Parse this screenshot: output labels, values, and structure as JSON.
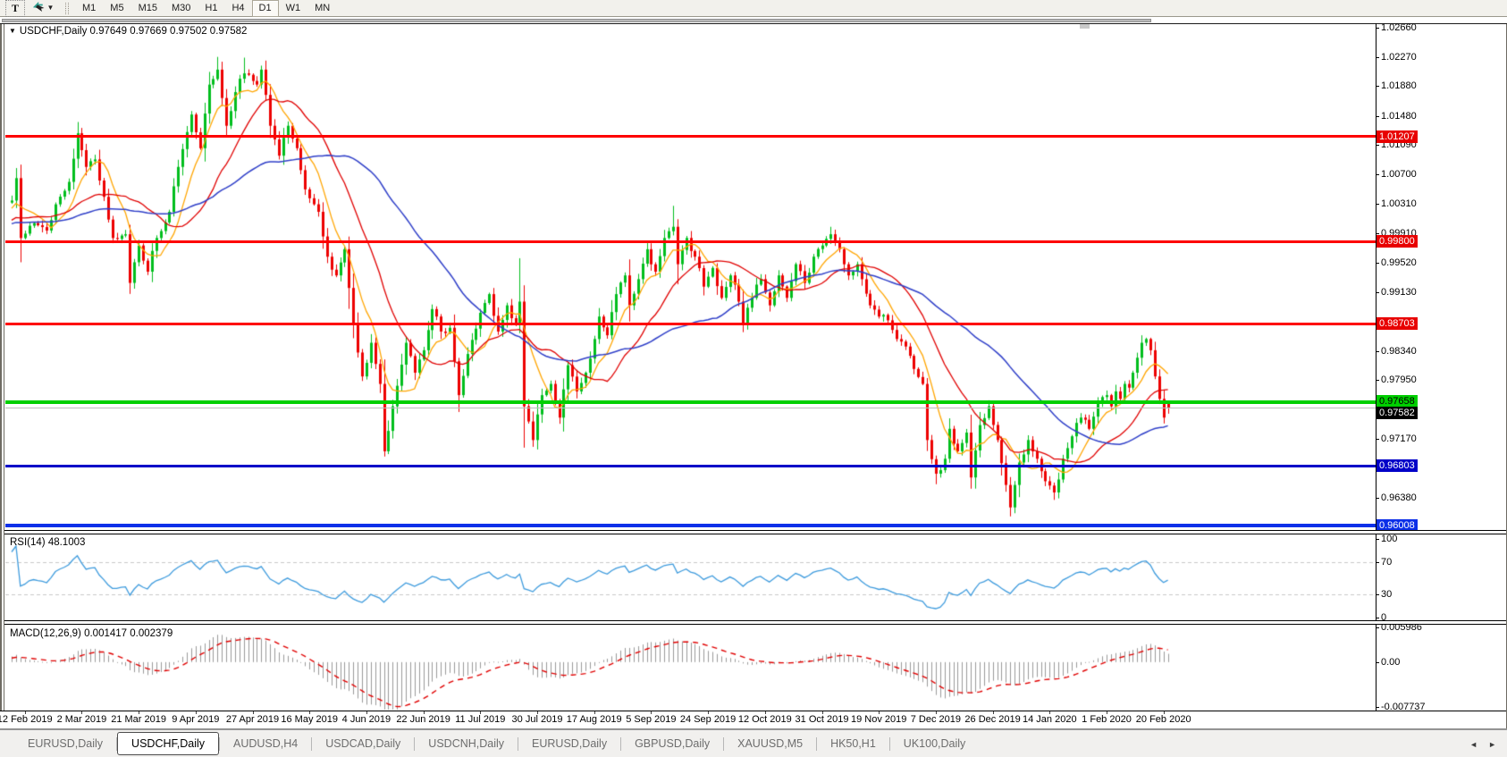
{
  "toolbar": {
    "text_tool_label": "T",
    "dropdown_caret": "▼",
    "timeframes": [
      "M1",
      "M5",
      "M15",
      "M30",
      "H1",
      "H4",
      "D1",
      "W1",
      "MN"
    ],
    "active_timeframe": "D1"
  },
  "chart": {
    "collapse_arrow": "▼",
    "title_text": "USDCHF,Daily  0.97649 0.97669 0.97502 0.97582"
  },
  "chart_data": {
    "type": "candlestick",
    "symbol": "USDCHF",
    "timeframe": "Daily",
    "current_bar": {
      "open": 0.97649,
      "high": 0.97669,
      "low": 0.97502,
      "close": 0.97582
    },
    "price_axis": {
      "range_top": 1.02708,
      "range_bottom": 0.9596,
      "ticks": [
        "1.02660",
        "1.02270",
        "1.01880",
        "1.01480",
        "1.01090",
        "1.00700",
        "1.00310",
        "0.99910",
        "0.99520",
        "0.99130",
        "0.98340",
        "0.97950",
        "0.97170",
        "0.96380"
      ]
    },
    "date_ticks": [
      "12 Feb 2019",
      "2 Mar 2019",
      "21 Mar 2019",
      "9 Apr 2019",
      "27 Apr 2019",
      "16 May 2019",
      "4 Jun 2019",
      "22 Jun 2019",
      "11 Jul 2019",
      "30 Jul 2019",
      "17 Aug 2019",
      "5 Sep 2019",
      "24 Sep 2019",
      "12 Oct 2019",
      "31 Oct 2019",
      "19 Nov 2019",
      "7 Dec 2019",
      "26 Dec 2019",
      "14 Jan 2020",
      "1 Feb 2020",
      "20 Feb 2020"
    ],
    "horizontal_lines": [
      {
        "price": 1.01207,
        "label": "1.01207",
        "color": "#FE0000",
        "thickness": 3,
        "label_bg": "#E80000",
        "label_fg": "#FFFFFF",
        "label_dy": 0
      },
      {
        "price": 0.998,
        "label": "0.99800",
        "color": "#FE0000",
        "thickness": 3,
        "label_bg": "#E80000",
        "label_fg": "#FFFFFF",
        "label_dy": 0
      },
      {
        "price": 0.98703,
        "label": "0.98703",
        "color": "#FE0000",
        "thickness": 3,
        "label_bg": "#E80000",
        "label_fg": "#FFFFFF",
        "label_dy": 0
      },
      {
        "price": 0.97658,
        "label": "0.97658",
        "color": "#00CF00",
        "thickness": 4,
        "label_bg": "#00CF00",
        "label_fg": "#000000",
        "label_dy": -1
      },
      {
        "price": 0.97582,
        "label": "0.97582",
        "color": "#BDBDBD",
        "thickness": 1,
        "label_bg": "#000000",
        "label_fg": "#FFFFFF",
        "label_dy": 6
      },
      {
        "price": 0.96803,
        "label": "0.96803",
        "color": "#0000C8",
        "thickness": 3,
        "label_bg": "#0000C8",
        "label_fg": "#FFFFFF",
        "label_dy": 0
      },
      {
        "price": 0.96008,
        "label": "0.96008",
        "color": "#0C2FE8",
        "thickness": 4,
        "label_bg": "#0C2FE8",
        "label_fg": "#FFFFFF",
        "label_dy": 0
      }
    ],
    "candles": {
      "count": 265,
      "up_color": "#00BE1D",
      "down_color": "#ED0000",
      "preroll_anchors": [
        [
          -60,
          0.994
        ],
        [
          -45,
          0.9985
        ],
        [
          -30,
          1.001
        ],
        [
          -15,
          0.999
        ],
        [
          -5,
          1.002
        ]
      ],
      "anchors_close": [
        [
          0,
          1.0035
        ],
        [
          1,
          1.0065
        ],
        [
          2,
          0.9985
        ],
        [
          5,
          1.0005
        ],
        [
          8,
          0.9995
        ],
        [
          10,
          1.003
        ],
        [
          13,
          1.006
        ],
        [
          15,
          1.0125
        ],
        [
          17,
          1.008
        ],
        [
          19,
          1.009
        ],
        [
          21,
          1.004
        ],
        [
          23,
          0.9985
        ],
        [
          26,
          0.999
        ],
        [
          27,
          0.9925
        ],
        [
          29,
          0.9975
        ],
        [
          31,
          0.994
        ],
        [
          33,
          0.9985
        ],
        [
          36,
          1.002
        ],
        [
          38,
          1.008
        ],
        [
          41,
          1.015
        ],
        [
          43,
          1.0105
        ],
        [
          45,
          1.019
        ],
        [
          47,
          1.021
        ],
        [
          49,
          1.0135
        ],
        [
          51,
          1.018
        ],
        [
          53,
          1.0205
        ],
        [
          56,
          1.019
        ],
        [
          57,
          1.021
        ],
        [
          59,
          1.0135
        ],
        [
          61,
          1.0095
        ],
        [
          63,
          1.0135
        ],
        [
          65,
          1.0105
        ],
        [
          67,
          1.005
        ],
        [
          70,
          1.002
        ],
        [
          72,
          0.996
        ],
        [
          74,
          0.9935
        ],
        [
          76,
          0.997
        ],
        [
          78,
          0.987
        ],
        [
          80,
          0.98
        ],
        [
          82,
          0.9845
        ],
        [
          84,
          0.979
        ],
        [
          85,
          0.97
        ],
        [
          87,
          0.976
        ],
        [
          90,
          0.9845
        ],
        [
          92,
          0.9805
        ],
        [
          94,
          0.9835
        ],
        [
          96,
          0.989
        ],
        [
          98,
          0.986
        ],
        [
          100,
          0.9865
        ],
        [
          102,
          0.9775
        ],
        [
          104,
          0.983
        ],
        [
          107,
          0.9885
        ],
        [
          109,
          0.991
        ],
        [
          111,
          0.986
        ],
        [
          113,
          0.9895
        ],
        [
          115,
          0.987
        ],
        [
          116,
          0.99
        ],
        [
          117,
          0.976
        ],
        [
          119,
          0.9715
        ],
        [
          121,
          0.9775
        ],
        [
          123,
          0.979
        ],
        [
          125,
          0.9745
        ],
        [
          127,
          0.9815
        ],
        [
          129,
          0.978
        ],
        [
          131,
          0.9805
        ],
        [
          133,
          0.985
        ],
        [
          134,
          0.988
        ],
        [
          136,
          0.9855
        ],
        [
          138,
          0.991
        ],
        [
          140,
          0.9935
        ],
        [
          141,
          0.9895
        ],
        [
          143,
          0.993
        ],
        [
          145,
          0.997
        ],
        [
          147,
          0.994
        ],
        [
          149,
          0.9985
        ],
        [
          151,
          1.0
        ],
        [
          152,
          0.995
        ],
        [
          154,
          0.9985
        ],
        [
          156,
          0.996
        ],
        [
          158,
          0.992
        ],
        [
          160,
          0.9945
        ],
        [
          162,
          0.9905
        ],
        [
          164,
          0.9935
        ],
        [
          166,
          0.99
        ],
        [
          167,
          0.987
        ],
        [
          169,
          0.9905
        ],
        [
          171,
          0.993
        ],
        [
          173,
          0.9895
        ],
        [
          175,
          0.9935
        ],
        [
          177,
          0.9905
        ],
        [
          179,
          0.995
        ],
        [
          181,
          0.9925
        ],
        [
          183,
          0.996
        ],
        [
          185,
          0.9975
        ],
        [
          187,
          0.999
        ],
        [
          189,
          0.997
        ],
        [
          191,
          0.9935
        ],
        [
          193,
          0.995
        ],
        [
          196,
          0.9895
        ],
        [
          198,
          0.988
        ],
        [
          200,
          0.9875
        ],
        [
          202,
          0.985
        ],
        [
          204,
          0.984
        ],
        [
          206,
          0.981
        ],
        [
          208,
          0.979
        ],
        [
          209,
          0.9715
        ],
        [
          211,
          0.967
        ],
        [
          213,
          0.969
        ],
        [
          214,
          0.973
        ],
        [
          216,
          0.97
        ],
        [
          218,
          0.9725
        ],
        [
          219,
          0.9665
        ],
        [
          221,
          0.9735
        ],
        [
          223,
          0.976
        ],
        [
          225,
          0.9715
        ],
        [
          227,
          0.9655
        ],
        [
          228,
          0.9625
        ],
        [
          229,
          0.9655
        ],
        [
          230,
          0.9685
        ],
        [
          232,
          0.9715
        ],
        [
          234,
          0.969
        ],
        [
          236,
          0.966
        ],
        [
          238,
          0.9645
        ],
        [
          240,
          0.969
        ],
        [
          242,
          0.972
        ],
        [
          244,
          0.9745
        ],
        [
          246,
          0.973
        ],
        [
          248,
          0.9765
        ],
        [
          250,
          0.9775
        ],
        [
          251,
          0.976
        ],
        [
          252,
          0.978
        ],
        [
          253,
          0.977
        ],
        [
          254,
          0.979
        ],
        [
          255,
          0.9785
        ],
        [
          256,
          0.9805
        ],
        [
          257,
          0.9825
        ],
        [
          258,
          0.9845
        ],
        [
          259,
          0.985
        ],
        [
          260,
          0.9835
        ],
        [
          261,
          0.98
        ],
        [
          262,
          0.977
        ],
        [
          263,
          0.9745
        ],
        [
          264,
          0.97582
        ]
      ],
      "special_bars": {
        "15": {
          "h": 1.014
        },
        "47": {
          "h": 1.0227
        },
        "53": {
          "h": 1.0226
        },
        "85": {
          "l": 0.9693
        },
        "116": {
          "h": 0.9958
        },
        "151": {
          "h": 1.0028
        },
        "187": {
          "h": 1.0
        },
        "211": {
          "l": 0.9656
        },
        "219": {
          "l": 0.965
        },
        "228": {
          "l": 0.9613
        },
        "238": {
          "l": 0.9635
        },
        "258": {
          "h": 0.9855
        },
        "264": {
          "o": 0.97649,
          "h": 0.97669,
          "l": 0.97502,
          "c": 0.97582
        }
      }
    },
    "moving_averages": [
      {
        "name": "fast-ma",
        "period": 8,
        "color": "#FFA500"
      },
      {
        "name": "medium-ma",
        "period": 20,
        "color": "#E00000"
      },
      {
        "name": "slow-ma",
        "period": 45,
        "color": "#2F3FC8"
      }
    ],
    "rsi": {
      "label": "RSI(14) 48.1003",
      "period": 14,
      "current": 48.1003,
      "color": "#3E9BDD",
      "levels": [
        70,
        30
      ],
      "ticks": [
        "100",
        "70",
        "30",
        "0"
      ],
      "range": [
        0,
        100
      ],
      "level_color": "#c8c8c8"
    },
    "macd": {
      "label": "MACD(12,26,9) 0.001417 0.002379",
      "fast": 12,
      "slow": 26,
      "signal_period": 9,
      "macd_value": 0.001417,
      "signal_value": 0.002379,
      "hist_color": "#9a9a9a",
      "signal_color": "#E00000",
      "ticks": [
        "0.005986",
        "0.00",
        "-0.007737"
      ],
      "range": [
        -0.007737,
        0.005986
      ]
    }
  },
  "bottom_tabs": {
    "tabs": [
      "EURUSD,Daily",
      "USDCHF,Daily",
      "AUDUSD,H4",
      "USDCAD,Daily",
      "USDCNH,Daily",
      "EURUSD,Daily",
      "GBPUSD,Daily",
      "XAUUSD,M5",
      "HK50,H1",
      "UK100,Daily"
    ],
    "active_index": 1,
    "prev_arrow": "◄",
    "next_arrow": "►"
  }
}
